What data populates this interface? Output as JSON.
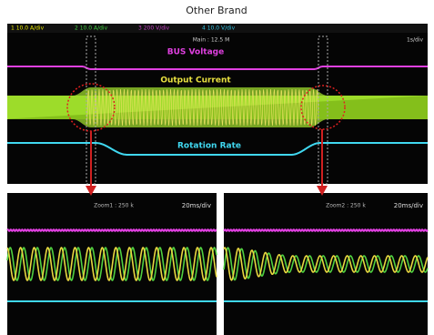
{
  "header": {
    "title": "Other Brand"
  },
  "main": {
    "channels": [
      "1 10.0 A/div",
      "2 10.0 A/div",
      "3 200 V/div",
      "4 10.0 V/div"
    ],
    "record": "Main : 12.5 M",
    "timebase": "1s/div",
    "labels": {
      "bus": "BUS Voltage",
      "current": "Output Current",
      "rotation": "Rotation Rate"
    }
  },
  "zoom1": {
    "record": "Zoom1 : 250 k",
    "timebase": "20ms/div"
  },
  "zoom2": {
    "record": "Zoom2 : 250 k",
    "timebase": "20ms/div"
  }
}
